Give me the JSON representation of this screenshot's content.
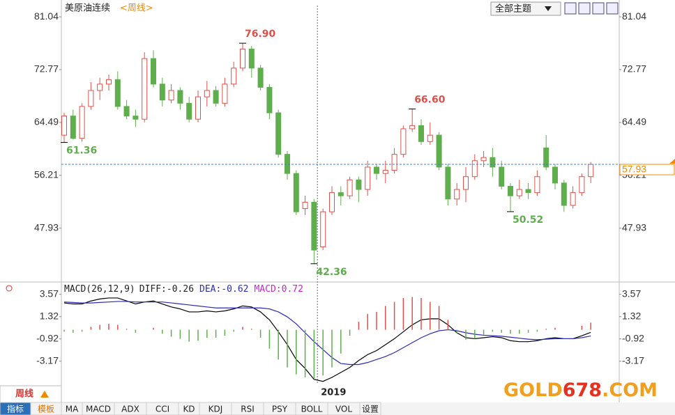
{
  "header": {
    "title": "美原油连续",
    "period": "<周线>",
    "theme_button": "全部主题"
  },
  "chart_data": [
    {
      "type": "candlestick",
      "categories": [
        null,
        null,
        null,
        null,
        null,
        null,
        null,
        null,
        null,
        null,
        null,
        null,
        null,
        null,
        null,
        null,
        null,
        null,
        null,
        null,
        null,
        null,
        null,
        null,
        null,
        null,
        null,
        null,
        null,
        "2019",
        null,
        null,
        null,
        null,
        null,
        null,
        null,
        null,
        null,
        null,
        null,
        null,
        null,
        null,
        null,
        null,
        null,
        null,
        null,
        null,
        null,
        null,
        null,
        null,
        null,
        null,
        null,
        null,
        null,
        null
      ],
      "open": [
        62.5,
        65.5,
        62,
        67,
        69.5,
        70.5,
        71.2,
        67,
        65.5,
        65,
        74.5,
        70.5,
        68,
        69.5,
        67.5,
        65,
        68.5,
        69.5,
        67.5,
        70.5,
        73,
        76,
        73,
        70,
        66,
        59.5,
        56.5,
        51,
        52,
        45,
        50.5,
        53.5,
        53,
        55.5,
        54,
        57.5,
        56.5,
        57,
        59.5,
        63.5,
        64,
        61.5,
        62.5,
        57.5,
        52.5,
        54,
        56,
        58.5,
        59,
        57.5,
        54.5,
        53,
        54,
        53.5,
        60.5,
        57.5,
        55,
        51.5,
        53.5,
        56
      ],
      "high": [
        66,
        66.5,
        67.5,
        70.8,
        71.5,
        72,
        72.5,
        68,
        66.5,
        75.5,
        75.8,
        71.5,
        70.5,
        70,
        68.5,
        69.5,
        71,
        70.2,
        71.5,
        74,
        76.9,
        76.5,
        73.5,
        70.5,
        66.5,
        60,
        57,
        53,
        52.5,
        51,
        54.5,
        54.5,
        56,
        56,
        58.5,
        58,
        58.5,
        60.5,
        64,
        66.6,
        65,
        64.5,
        63,
        58,
        55,
        57.5,
        59.5,
        60,
        60.5,
        58.5,
        55,
        55.5,
        55,
        57,
        62.5,
        58,
        55.5,
        54.5,
        56.5,
        58.3
      ],
      "low": [
        61.36,
        61.8,
        61.5,
        66.5,
        68,
        69.5,
        66.5,
        65,
        63.8,
        64.5,
        70,
        67,
        67.5,
        66.5,
        64.5,
        64.5,
        67,
        67,
        67,
        70,
        72.5,
        71.5,
        69.5,
        65,
        59,
        55.5,
        50,
        50,
        42.36,
        44.5,
        50,
        51.5,
        52.5,
        52,
        53,
        55.5,
        55,
        56.5,
        59,
        63,
        61,
        61,
        57,
        51.5,
        51.5,
        52,
        55.5,
        57.5,
        56,
        54,
        50.52,
        52.5,
        52.5,
        53,
        57,
        54,
        50.5,
        51,
        53,
        55
      ],
      "close": [
        65.5,
        62,
        67,
        69.5,
        70.5,
        71.2,
        67,
        65.5,
        65,
        74.5,
        70.5,
        68,
        69.5,
        67.5,
        65,
        68.5,
        69.5,
        67.5,
        70.5,
        73,
        76,
        73,
        70,
        66,
        59.5,
        56.5,
        50.5,
        52,
        44.5,
        50.5,
        53.5,
        53,
        55.5,
        54,
        57.5,
        56.5,
        57,
        59.5,
        63.5,
        64,
        61.5,
        62.5,
        57.5,
        52.5,
        54,
        56,
        58.5,
        59,
        57.5,
        54.5,
        53,
        54,
        53.5,
        56,
        57.5,
        55,
        51.5,
        53.5,
        56,
        57.93
      ],
      "up_color": "#e0504a",
      "down_color": "#5fae4e",
      "ylim": [
        39.5,
        82.8
      ],
      "yticks": [
        81.04,
        72.77,
        64.49,
        56.21,
        47.93
      ],
      "annotations": [
        {
          "value": 76.9,
          "label": "76.90"
        },
        {
          "value": 61.36,
          "label": "61.36"
        },
        {
          "value": 42.36,
          "label": "42.36"
        },
        {
          "value": 66.6,
          "label": "66.60"
        },
        {
          "value": 50.52,
          "label": "50.52"
        }
      ],
      "last": 57.93,
      "last_color": "#f08a00",
      "line_color": "#3a7fd0"
    },
    {
      "type": "macd",
      "title": "MACD(26,12,9)",
      "diff_label": "DIFF:",
      "diff": -0.26,
      "dea_label": "DEA:",
      "dea": -0.62,
      "macd_label": "MACD:",
      "macd": 0.72,
      "series": [
        {
          "name": "DIFF",
          "color": "#000000",
          "values": [
            2.7,
            2.6,
            2.6,
            2.9,
            3.1,
            3.2,
            3.2,
            2.9,
            2.6,
            2.8,
            2.9,
            2.6,
            2.3,
            2.1,
            1.8,
            1.8,
            1.9,
            1.8,
            1.9,
            2.1,
            2.4,
            2.3,
            1.8,
            1.0,
            -0.2,
            -1.5,
            -3.0,
            -3.9,
            -5.0,
            -5.2,
            -4.8,
            -4.3,
            -3.8,
            -3.1,
            -2.5,
            -2.1,
            -1.5,
            -0.9,
            -0.2,
            0.5,
            1.0,
            1.1,
            1.1,
            0.5,
            -0.3,
            -0.8,
            -0.9,
            -0.8,
            -0.7,
            -0.8,
            -1.1,
            -1.2,
            -1.2,
            -1.1,
            -0.9,
            -0.8,
            -0.9,
            -0.9,
            -0.6,
            -0.26
          ]
        },
        {
          "name": "DEA",
          "color": "#2a2ab8",
          "values": [
            2.8,
            2.75,
            2.7,
            2.7,
            2.75,
            2.8,
            2.85,
            2.85,
            2.8,
            2.8,
            2.8,
            2.8,
            2.7,
            2.6,
            2.5,
            2.4,
            2.3,
            2.2,
            2.2,
            2.2,
            2.2,
            2.2,
            2.2,
            2.1,
            1.8,
            1.3,
            0.6,
            -0.3,
            -1.2,
            -2.0,
            -2.8,
            -3.4,
            -3.5,
            -3.5,
            -3.3,
            -3.0,
            -2.7,
            -2.3,
            -1.8,
            -1.3,
            -0.8,
            -0.4,
            -0.1,
            0.0,
            -0.1,
            -0.3,
            -0.45,
            -0.55,
            -0.6,
            -0.65,
            -0.75,
            -0.85,
            -0.95,
            -1.0,
            -0.95,
            -0.9,
            -0.9,
            -0.9,
            -0.8,
            -0.62
          ]
        },
        {
          "name": "MACD",
          "color": "#e0504a",
          "down_color": "#5fae4e",
          "values": [
            -0.2,
            -0.3,
            -0.2,
            0.3,
            0.5,
            0.6,
            0.5,
            0.1,
            -0.3,
            0,
            0.2,
            -0.4,
            -0.7,
            -0.9,
            -1.2,
            -1.1,
            -0.8,
            -0.8,
            -0.6,
            -0.2,
            0.3,
            0.1,
            -0.8,
            -1.9,
            -3.0,
            -3.8,
            -4.5,
            -4.8,
            -4.9,
            -4.6,
            -3.8,
            -2.4,
            -0.6,
            0.8,
            1.6,
            1.8,
            2.4,
            2.8,
            3.2,
            3.3,
            3.2,
            2.8,
            2.4,
            1.0,
            -0.4,
            -1.0,
            -0.9,
            -0.5,
            -0.2,
            -0.3,
            -0.4,
            -0.4,
            -0.3,
            -0.2,
            0.1,
            0.2,
            0.0,
            0.0,
            0.4,
            0.72
          ]
        }
      ],
      "ylim": [
        -5.5,
        4.6
      ],
      "yticks": [
        3.57,
        1.32,
        -0.92,
        -3.17
      ]
    }
  ],
  "toolbar": {
    "period": "周线",
    "tabs": [
      "指标",
      "模板",
      "MA",
      "MACD",
      "ADX",
      "CCI",
      "KD",
      "KDJ",
      "RSI",
      "PSY",
      "BOLL",
      "VOL",
      "设置"
    ]
  },
  "watermark": {
    "brand": "GOLD",
    "number": "678",
    "suffix": ".COM"
  }
}
